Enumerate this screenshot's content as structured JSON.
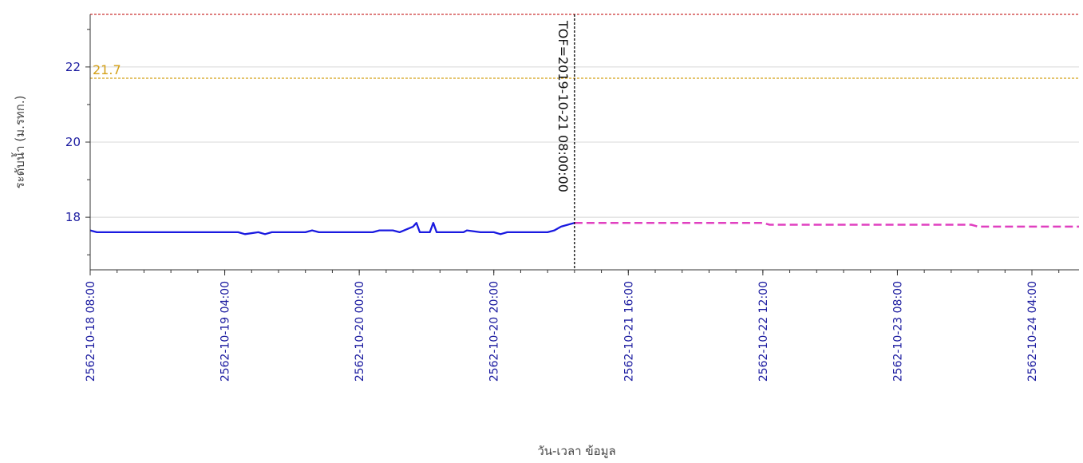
{
  "colors": {
    "observed": "#1a1ae0",
    "forecast": "#e040c0",
    "bank_level": "#cc3333",
    "warning_level": "#d4a017",
    "tof_line": "#000000",
    "tick_text": "#1c1ca0",
    "grid": "#d8d8d8"
  },
  "chart_data": {
    "type": "line",
    "xlabel": "วัน-เวลา ข้อมูล",
    "ylabel": "ระดับน้ำ (ม.รทก.)",
    "y_ticks": [
      "18",
      "20",
      "22"
    ],
    "x_tick_labels": [
      "2562-10-18 08:00",
      "2562-10-19 04:00",
      "2562-10-20 00:00",
      "2562-10-20 20:00",
      "2562-10-21 16:00",
      "2562-10-22 12:00",
      "2562-10-23 08:00",
      "2562-10-24 04:00"
    ],
    "grid": true,
    "xlim": [
      "2562-10-18 08:00",
      "2562-10-24 11:00"
    ],
    "ylim": [
      16.6,
      23.4
    ],
    "reference_lines": [
      {
        "value": 23.4,
        "label": "",
        "color_key": "bank_level"
      },
      {
        "value": 21.7,
        "label": "21.7",
        "color_key": "warning_level"
      }
    ],
    "annotation": {
      "x": "2562-10-21 08:00",
      "label": "TOF=2019-10-21 08:00:00"
    },
    "series": [
      {
        "style": "solid",
        "color_key": "observed",
        "points": [
          [
            "2562-10-18 08:00",
            17.65
          ],
          [
            "2562-10-18 09:00",
            17.6
          ],
          [
            "2562-10-19 00:00",
            17.6
          ],
          [
            "2562-10-19 06:00",
            17.6
          ],
          [
            "2562-10-19 07:00",
            17.55
          ],
          [
            "2562-10-19 09:00",
            17.6
          ],
          [
            "2562-10-19 10:00",
            17.55
          ],
          [
            "2562-10-19 11:00",
            17.6
          ],
          [
            "2562-10-19 16:00",
            17.6
          ],
          [
            "2562-10-19 17:00",
            17.65
          ],
          [
            "2562-10-19 18:00",
            17.6
          ],
          [
            "2562-10-20 02:00",
            17.6
          ],
          [
            "2562-10-20 03:00",
            17.65
          ],
          [
            "2562-10-20 05:00",
            17.65
          ],
          [
            "2562-10-20 06:00",
            17.6
          ],
          [
            "2562-10-20 08:00",
            17.75
          ],
          [
            "2562-10-20 08:30",
            17.85
          ],
          [
            "2562-10-20 09:00",
            17.6
          ],
          [
            "2562-10-20 10:30",
            17.6
          ],
          [
            "2562-10-20 11:00",
            17.85
          ],
          [
            "2562-10-20 11:30",
            17.6
          ],
          [
            "2562-10-20 15:00",
            17.6
          ],
          [
            "2562-10-20 15:30",
            17.6
          ],
          [
            "2562-10-20 16:00",
            17.65
          ],
          [
            "2562-10-20 18:00",
            17.6
          ],
          [
            "2562-10-20 20:00",
            17.6
          ],
          [
            "2562-10-20 21:00",
            17.55
          ],
          [
            "2562-10-20 22:00",
            17.6
          ],
          [
            "2562-10-21 04:00",
            17.6
          ],
          [
            "2562-10-21 05:00",
            17.65
          ],
          [
            "2562-10-21 06:00",
            17.75
          ],
          [
            "2562-10-21 08:00",
            17.85
          ]
        ]
      },
      {
        "style": "dashed",
        "color_key": "forecast",
        "points": [
          [
            "2562-10-21 08:00",
            17.85
          ],
          [
            "2562-10-22 12:00",
            17.85
          ],
          [
            "2562-10-22 13:00",
            17.8
          ],
          [
            "2562-10-23 09:00",
            17.8
          ],
          [
            "2562-10-23 19:00",
            17.8
          ],
          [
            "2562-10-23 20:00",
            17.75
          ],
          [
            "2562-10-24 11:00",
            17.75
          ]
        ]
      }
    ]
  }
}
